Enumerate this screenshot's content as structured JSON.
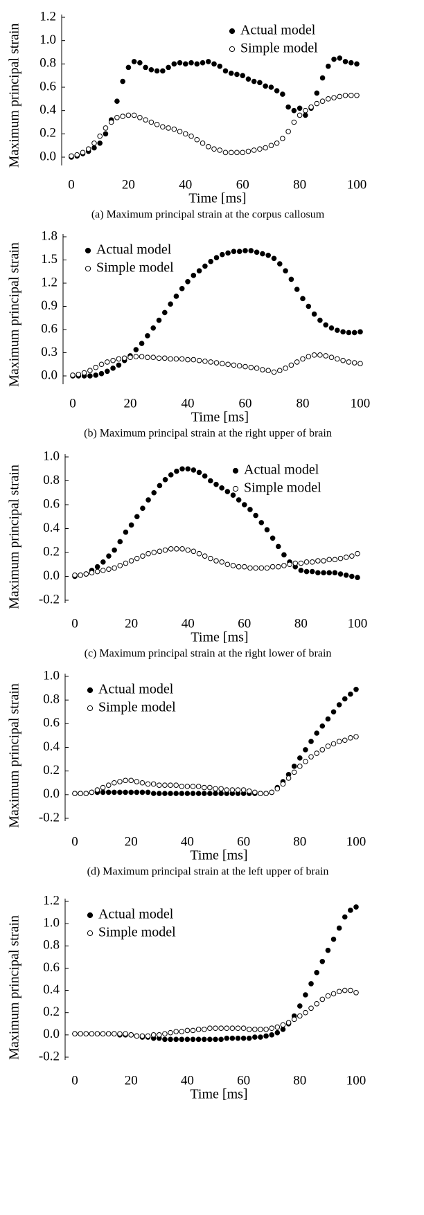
{
  "chart_data": [
    {
      "type": "scatter",
      "caption": "(a) Maximum principal strain at the corpus callosum",
      "xlabel": "Time [ms]",
      "ylabel": "Maximum principal strain",
      "legend": "upper right",
      "xlim": [
        0,
        100
      ],
      "xticks": [
        0,
        20,
        40,
        60,
        80,
        100
      ],
      "ylim": [
        0,
        1.2
      ],
      "yticks": [
        {
          "value": 0,
          "label": "0.0"
        },
        0.2,
        0.4,
        0.6,
        0.8,
        {
          "value": 1,
          "label": "1.0"
        },
        1.2
      ],
      "x": [
        0,
        2,
        4,
        6,
        8,
        10,
        12,
        14,
        16,
        18,
        20,
        22,
        24,
        26,
        28,
        30,
        32,
        34,
        36,
        38,
        40,
        42,
        44,
        46,
        48,
        50,
        52,
        54,
        56,
        58,
        60,
        62,
        64,
        66,
        68,
        70,
        72,
        74,
        76,
        78,
        80,
        82,
        84,
        86,
        88,
        90,
        92,
        94,
        96,
        98,
        100
      ],
      "series": [
        {
          "name": "Actual model",
          "color": "#000000",
          "marker": "filled",
          "values": [
            0,
            0.01,
            0.03,
            0.05,
            0.08,
            0.12,
            0.2,
            0.32,
            0.48,
            0.65,
            0.77,
            0.82,
            0.81,
            0.77,
            0.75,
            0.74,
            0.74,
            0.77,
            0.8,
            0.81,
            0.8,
            0.81,
            0.8,
            0.81,
            0.82,
            0.8,
            0.78,
            0.74,
            0.72,
            0.71,
            0.7,
            0.67,
            0.65,
            0.64,
            0.61,
            0.6,
            0.57,
            0.54,
            0.43,
            0.4,
            0.42,
            0.36,
            0.42,
            0.55,
            0.68,
            0.78,
            0.84,
            0.85,
            0.82,
            0.81,
            0.8
          ]
        },
        {
          "name": "Simple model",
          "color": "#000000",
          "marker": "open",
          "values": [
            0.01,
            0.02,
            0.04,
            0.07,
            0.12,
            0.18,
            0.25,
            0.3,
            0.34,
            0.35,
            0.36,
            0.36,
            0.34,
            0.32,
            0.3,
            0.28,
            0.26,
            0.25,
            0.24,
            0.22,
            0.2,
            0.18,
            0.15,
            0.12,
            0.09,
            0.07,
            0.06,
            0.04,
            0.04,
            0.04,
            0.04,
            0.05,
            0.06,
            0.07,
            0.08,
            0.1,
            0.12,
            0.16,
            0.22,
            0.3,
            0.36,
            0.4,
            0.43,
            0.46,
            0.48,
            0.5,
            0.51,
            0.52,
            0.53,
            0.53,
            0.53
          ]
        }
      ]
    },
    {
      "type": "scatter",
      "caption": "(b) Maximum principal strain at the right upper of brain",
      "xlabel": "Time [ms]",
      "ylabel": "Maximum principal strain",
      "legend": "upper left",
      "xlim": [
        0,
        100
      ],
      "xticks": [
        0,
        20,
        40,
        60,
        80,
        100
      ],
      "ylim": [
        0,
        1.8
      ],
      "yticks": [
        {
          "value": 0,
          "label": "0.0"
        },
        0.3,
        0.6,
        0.9,
        1.2,
        1.5,
        1.8
      ],
      "x": [
        0,
        2,
        4,
        6,
        8,
        10,
        12,
        14,
        16,
        18,
        20,
        22,
        24,
        26,
        28,
        30,
        32,
        34,
        36,
        38,
        40,
        42,
        44,
        46,
        48,
        50,
        52,
        54,
        56,
        58,
        60,
        62,
        64,
        66,
        68,
        70,
        72,
        74,
        76,
        78,
        80,
        82,
        84,
        86,
        88,
        90,
        92,
        94,
        96,
        98,
        100
      ],
      "series": [
        {
          "name": "Actual model",
          "color": "#000000",
          "marker": "filled",
          "values": [
            0,
            0,
            0,
            0,
            0.01,
            0.03,
            0.06,
            0.1,
            0.14,
            0.2,
            0.26,
            0.34,
            0.42,
            0.52,
            0.62,
            0.72,
            0.82,
            0.93,
            1.03,
            1.13,
            1.22,
            1.3,
            1.36,
            1.42,
            1.48,
            1.53,
            1.57,
            1.59,
            1.61,
            1.61,
            1.62,
            1.62,
            1.6,
            1.58,
            1.56,
            1.52,
            1.45,
            1.36,
            1.25,
            1.12,
            1.0,
            0.9,
            0.8,
            0.72,
            0.66,
            0.62,
            0.59,
            0.57,
            0.56,
            0.56,
            0.57
          ]
        },
        {
          "name": "Simple model",
          "color": "#000000",
          "marker": "open",
          "values": [
            0.01,
            0.02,
            0.04,
            0.07,
            0.11,
            0.15,
            0.18,
            0.2,
            0.22,
            0.23,
            0.24,
            0.25,
            0.25,
            0.24,
            0.24,
            0.23,
            0.23,
            0.22,
            0.22,
            0.22,
            0.21,
            0.21,
            0.2,
            0.19,
            0.18,
            0.17,
            0.16,
            0.15,
            0.14,
            0.13,
            0.12,
            0.11,
            0.1,
            0.08,
            0.07,
            0.05,
            0.07,
            0.1,
            0.14,
            0.18,
            0.22,
            0.25,
            0.27,
            0.27,
            0.26,
            0.24,
            0.22,
            0.2,
            0.18,
            0.17,
            0.16
          ]
        }
      ]
    },
    {
      "type": "scatter",
      "caption": "(c) Maximum principal strain at the right lower of brain",
      "xlabel": "Time [ms]",
      "ylabel": "Maximum principal strain",
      "legend": "upper right",
      "xlim": [
        0,
        100
      ],
      "xticks": [
        0,
        20,
        40,
        60,
        80,
        100
      ],
      "ylim": [
        -0.2,
        1
      ],
      "yticks": [
        -0.2,
        {
          "value": 0,
          "label": "0.0"
        },
        0.2,
        0.4,
        0.6,
        0.8,
        {
          "value": 1,
          "label": "1.0"
        }
      ],
      "x": [
        0,
        2,
        4,
        6,
        8,
        10,
        12,
        14,
        16,
        18,
        20,
        22,
        24,
        26,
        28,
        30,
        32,
        34,
        36,
        38,
        40,
        42,
        44,
        46,
        48,
        50,
        52,
        54,
        56,
        58,
        60,
        62,
        64,
        66,
        68,
        70,
        72,
        74,
        76,
        78,
        80,
        82,
        84,
        86,
        88,
        90,
        92,
        94,
        96,
        98,
        100
      ],
      "series": [
        {
          "name": "Actual model",
          "color": "#000000",
          "marker": "filled",
          "values": [
            0,
            0.01,
            0.02,
            0.05,
            0.08,
            0.12,
            0.17,
            0.22,
            0.29,
            0.37,
            0.43,
            0.5,
            0.57,
            0.64,
            0.7,
            0.76,
            0.81,
            0.85,
            0.88,
            0.9,
            0.9,
            0.89,
            0.87,
            0.84,
            0.8,
            0.77,
            0.74,
            0.71,
            0.68,
            0.64,
            0.6,
            0.56,
            0.51,
            0.45,
            0.39,
            0.32,
            0.25,
            0.18,
            0.12,
            0.08,
            0.05,
            0.04,
            0.04,
            0.03,
            0.03,
            0.03,
            0.03,
            0.02,
            0.01,
            0,
            -0.01
          ]
        },
        {
          "name": "Simple model",
          "color": "#000000",
          "marker": "open",
          "values": [
            0.01,
            0.01,
            0.02,
            0.03,
            0.04,
            0.05,
            0.06,
            0.07,
            0.09,
            0.11,
            0.13,
            0.15,
            0.17,
            0.19,
            0.2,
            0.21,
            0.22,
            0.23,
            0.23,
            0.23,
            0.22,
            0.21,
            0.19,
            0.17,
            0.15,
            0.13,
            0.12,
            0.1,
            0.09,
            0.08,
            0.08,
            0.07,
            0.07,
            0.07,
            0.07,
            0.08,
            0.08,
            0.09,
            0.1,
            0.11,
            0.11,
            0.12,
            0.12,
            0.13,
            0.13,
            0.14,
            0.14,
            0.15,
            0.16,
            0.17,
            0.19
          ]
        }
      ]
    },
    {
      "type": "scatter",
      "caption": "(d) Maximum principal strain at the left upper of brain",
      "xlabel": "Time [ms]",
      "ylabel": "Maximum principal strain",
      "legend": "upper left",
      "xlim": [
        0,
        100
      ],
      "xticks": [
        0,
        20,
        40,
        60,
        80,
        100
      ],
      "ylim": [
        -0.2,
        1
      ],
      "yticks": [
        -0.2,
        {
          "value": 0,
          "label": "0.0"
        },
        0.2,
        0.4,
        0.6,
        0.8,
        {
          "value": 1,
          "label": "1.0"
        }
      ],
      "x": [
        0,
        2,
        4,
        6,
        8,
        10,
        12,
        14,
        16,
        18,
        20,
        22,
        24,
        26,
        28,
        30,
        32,
        34,
        36,
        38,
        40,
        42,
        44,
        46,
        48,
        50,
        52,
        54,
        56,
        58,
        60,
        62,
        64,
        66,
        68,
        70,
        72,
        74,
        76,
        78,
        80,
        82,
        84,
        86,
        88,
        90,
        92,
        94,
        96,
        98,
        100
      ],
      "series": [
        {
          "name": "Actual model",
          "color": "#000000",
          "marker": "filled",
          "values": [
            0.01,
            0.01,
            0.01,
            0.02,
            0.02,
            0.02,
            0.02,
            0.02,
            0.02,
            0.02,
            0.02,
            0.02,
            0.02,
            0.02,
            0.01,
            0.01,
            0.01,
            0.01,
            0.01,
            0.01,
            0.01,
            0.01,
            0.01,
            0.01,
            0.01,
            0.01,
            0.01,
            0.01,
            0.01,
            0.01,
            0.01,
            0.01,
            0.01,
            0.01,
            0.01,
            0.02,
            0.06,
            0.11,
            0.17,
            0.24,
            0.31,
            0.38,
            0.45,
            0.52,
            0.58,
            0.64,
            0.7,
            0.76,
            0.81,
            0.85,
            0.89
          ]
        },
        {
          "name": "Simple model",
          "color": "#000000",
          "marker": "open",
          "values": [
            0.01,
            0.01,
            0.01,
            0.02,
            0.04,
            0.06,
            0.08,
            0.1,
            0.11,
            0.12,
            0.12,
            0.11,
            0.1,
            0.09,
            0.09,
            0.08,
            0.08,
            0.08,
            0.08,
            0.07,
            0.07,
            0.07,
            0.07,
            0.06,
            0.06,
            0.05,
            0.05,
            0.04,
            0.04,
            0.04,
            0.04,
            0.03,
            0.02,
            0.01,
            0.01,
            0.02,
            0.05,
            0.09,
            0.14,
            0.19,
            0.24,
            0.28,
            0.32,
            0.35,
            0.38,
            0.41,
            0.43,
            0.45,
            0.46,
            0.48,
            0.49
          ]
        }
      ]
    },
    {
      "type": "scatter",
      "xlabel": "Time [ms]",
      "ylabel": "Maximum principal strain",
      "legend": "upper left",
      "xlim": [
        0,
        100
      ],
      "xticks": [
        0,
        20,
        40,
        60,
        80,
        100
      ],
      "ylim": [
        -0.2,
        1.2
      ],
      "yticks": [
        -0.2,
        {
          "value": 0,
          "label": "0.0"
        },
        0.2,
        0.4,
        0.6,
        0.8,
        {
          "value": 1,
          "label": "1.0"
        },
        1.2
      ],
      "x": [
        0,
        2,
        4,
        6,
        8,
        10,
        12,
        14,
        16,
        18,
        20,
        22,
        24,
        26,
        28,
        30,
        32,
        34,
        36,
        38,
        40,
        42,
        44,
        46,
        48,
        50,
        52,
        54,
        56,
        58,
        60,
        62,
        64,
        66,
        68,
        70,
        72,
        74,
        76,
        78,
        80,
        82,
        84,
        86,
        88,
        90,
        92,
        94,
        96,
        98,
        100
      ],
      "series": [
        {
          "name": "Actual model",
          "color": "#000000",
          "marker": "filled",
          "values": [
            0.01,
            0.01,
            0.01,
            0.01,
            0.01,
            0.01,
            0.01,
            0.01,
            0,
            0,
            0,
            -0.01,
            -0.02,
            -0.02,
            -0.03,
            -0.03,
            -0.04,
            -0.04,
            -0.04,
            -0.04,
            -0.04,
            -0.04,
            -0.04,
            -0.04,
            -0.04,
            -0.04,
            -0.04,
            -0.03,
            -0.03,
            -0.03,
            -0.03,
            -0.03,
            -0.02,
            -0.02,
            -0.01,
            0,
            0.02,
            0.05,
            0.1,
            0.17,
            0.26,
            0.36,
            0.46,
            0.56,
            0.66,
            0.76,
            0.86,
            0.96,
            1.06,
            1.12,
            1.15
          ]
        },
        {
          "name": "Simple model",
          "color": "#000000",
          "marker": "open",
          "values": [
            0.01,
            0.01,
            0.01,
            0.01,
            0.01,
            0.01,
            0.01,
            0.01,
            0.01,
            0.01,
            0,
            -0.01,
            -0.01,
            -0.01,
            0,
            0,
            0.01,
            0.02,
            0.03,
            0.03,
            0.04,
            0.04,
            0.05,
            0.05,
            0.06,
            0.06,
            0.06,
            0.06,
            0.06,
            0.06,
            0.06,
            0.05,
            0.05,
            0.05,
            0.05,
            0.06,
            0.07,
            0.09,
            0.11,
            0.14,
            0.17,
            0.2,
            0.24,
            0.28,
            0.32,
            0.35,
            0.37,
            0.39,
            0.4,
            0.4,
            0.38
          ]
        }
      ]
    }
  ]
}
